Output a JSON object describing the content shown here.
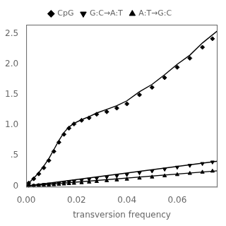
{
  "chart_data": {
    "type": "scatter",
    "xlabel": "transversion frequency",
    "xlim": [
      0.0,
      0.076
    ],
    "ylim": [
      -0.02,
      2.65
    ],
    "xticks": [
      {
        "value": 0.0,
        "label": "0.00"
      },
      {
        "value": 0.02,
        "label": "0.02"
      },
      {
        "value": 0.04,
        "label": "0.04"
      },
      {
        "value": 0.06,
        "label": "0.06"
      }
    ],
    "yticks": [
      0,
      {
        "value": 0.5,
        "label": ".5"
      },
      {
        "value": 1.0,
        "label": "1.0"
      },
      1.5,
      {
        "value": 2.0,
        "label": "2.0"
      },
      2.5
    ],
    "grid": false,
    "legend": "top",
    "series": [
      {
        "type": "line",
        "line_style": "solid",
        "color": "#000000",
        "x": [
          0.0,
          0.001,
          0.003,
          0.005,
          0.007,
          0.009,
          0.011,
          0.013,
          0.015,
          0.017,
          0.019,
          0.022,
          0.025,
          0.028,
          0.032,
          0.036,
          0.04,
          0.045,
          0.05,
          0.055,
          0.06,
          0.065,
          0.07,
          0.076
        ],
        "values": [
          0.0,
          0.05,
          0.13,
          0.22,
          0.33,
          0.45,
          0.6,
          0.75,
          0.88,
          0.97,
          1.03,
          1.09,
          1.14,
          1.2,
          1.26,
          1.32,
          1.4,
          1.55,
          1.67,
          1.83,
          2.0,
          2.15,
          2.35,
          2.55
        ]
      },
      {
        "type": "line",
        "line_style": "solid",
        "color": "#000000",
        "x": [
          0.0,
          0.076
        ],
        "values": [
          0.0,
          0.408
        ]
      },
      {
        "type": "line",
        "line_style": "solid",
        "color": "#000000",
        "x": [
          0.0,
          0.076
        ],
        "values": [
          0.0,
          0.25
        ]
      },
      {
        "type": "scatter",
        "name": "CpG",
        "marker": "diamond",
        "color": "#000000",
        "x": [
          0.001,
          0.003,
          0.005,
          0.007,
          0.009,
          0.011,
          0.013,
          0.015,
          0.017,
          0.019,
          0.022,
          0.025,
          0.028,
          0.032,
          0.036,
          0.04,
          0.045,
          0.05,
          0.055,
          0.06,
          0.065,
          0.07,
          0.074
        ],
        "values": [
          0.05,
          0.12,
          0.2,
          0.3,
          0.42,
          0.57,
          0.72,
          0.85,
          0.95,
          1.02,
          1.08,
          1.12,
          1.18,
          1.22,
          1.28,
          1.35,
          1.5,
          1.62,
          1.78,
          1.95,
          2.1,
          2.28,
          2.42
        ]
      },
      {
        "type": "scatter",
        "name": "G:C→A:T",
        "marker": "triangle-down",
        "color": "#000000",
        "x": [
          0.001,
          0.003,
          0.005,
          0.007,
          0.009,
          0.011,
          0.013,
          0.015,
          0.017,
          0.019,
          0.022,
          0.025,
          0.028,
          0.032,
          0.036,
          0.04,
          0.045,
          0.05,
          0.055,
          0.06,
          0.065,
          0.07,
          0.074
        ],
        "values": [
          0.005,
          0.01,
          0.018,
          0.025,
          0.032,
          0.04,
          0.05,
          0.06,
          0.07,
          0.08,
          0.095,
          0.112,
          0.128,
          0.148,
          0.168,
          0.19,
          0.218,
          0.248,
          0.278,
          0.31,
          0.34,
          0.37,
          0.395
        ]
      },
      {
        "type": "scatter",
        "name": "A:T→G:C",
        "marker": "triangle-up",
        "color": "#000000",
        "x": [
          0.001,
          0.003,
          0.005,
          0.007,
          0.009,
          0.011,
          0.013,
          0.015,
          0.017,
          0.019,
          0.022,
          0.025,
          0.028,
          0.032,
          0.036,
          0.04,
          0.045,
          0.05,
          0.055,
          0.06,
          0.065,
          0.07,
          0.074
        ],
        "values": [
          0.003,
          0.006,
          0.01,
          0.014,
          0.018,
          0.022,
          0.028,
          0.034,
          0.04,
          0.046,
          0.055,
          0.065,
          0.075,
          0.088,
          0.1,
          0.113,
          0.13,
          0.148,
          0.168,
          0.188,
          0.208,
          0.228,
          0.245
        ]
      }
    ]
  }
}
